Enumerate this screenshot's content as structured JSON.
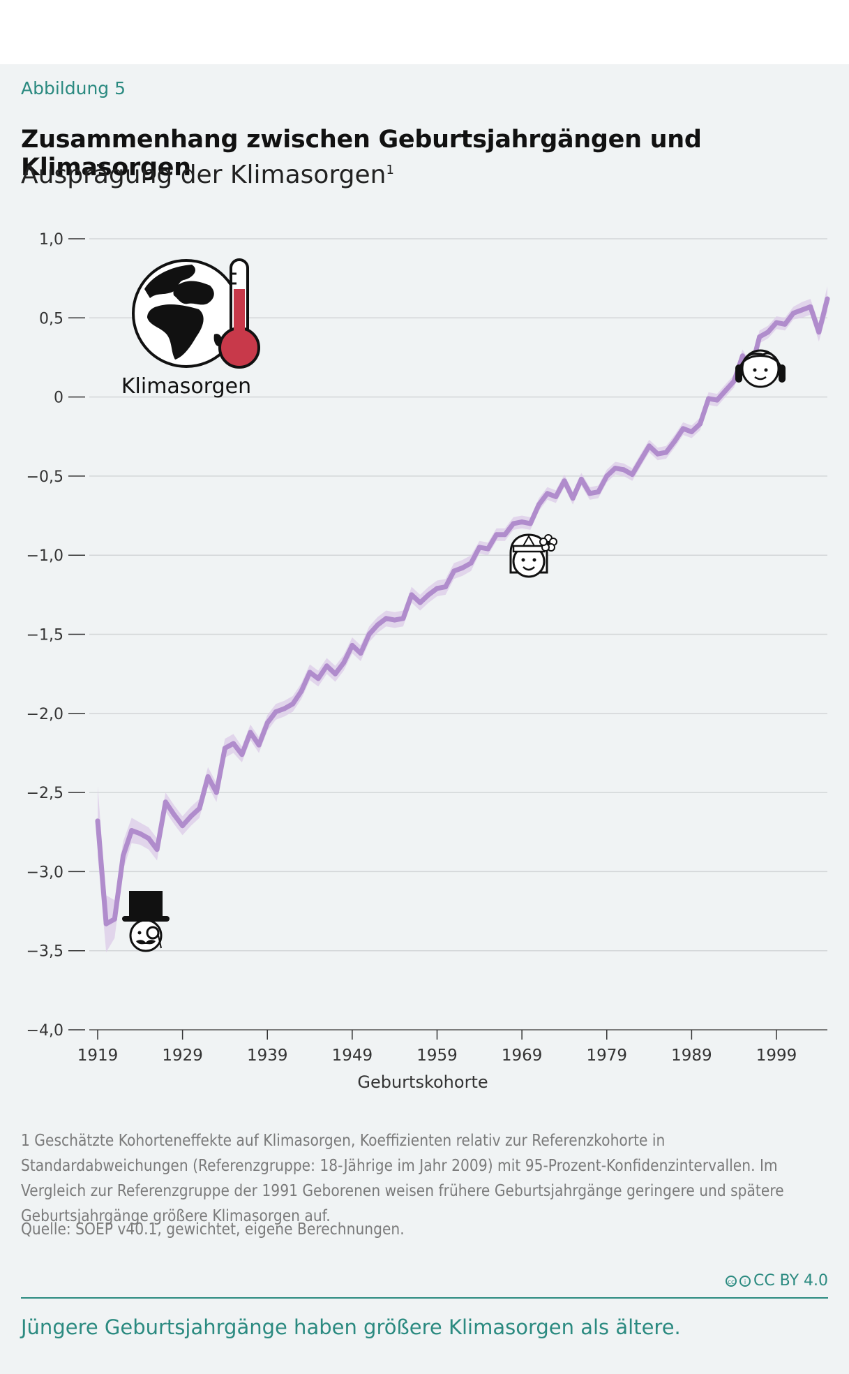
{
  "figure_label": "Abbildung 5",
  "title": "Zusammenhang zwischen Geburtsjahrgängen und Klimasorgen",
  "subtitle": "Ausprägung der Klimasorgen",
  "subtitle_note": "1",
  "icon_label": "Klimasorgen",
  "footnote": "1  Geschätzte Kohorteneffekte auf Klimasorgen, Koeffizienten relativ zur Referenzkohorte in Standardabweichungen (Referenzgruppe: 18-Jährige im Jahr 2009) mit 95-Prozent-Konfidenzintervallen. Im Vergleich zur Referenzgruppe der 1991 Geborenen weisen frühere Geburtsjahrgänge geringere und spätere Geburtsjahrgänge größere Klimasorgen auf.",
  "source": "Quelle: SOEP v40.1, gewichtet, eigene Berechnungen.",
  "license": "CC BY 4.0",
  "takeaway": "Jüngere Geburtsjahrgänge haben größere Klimasorgen als ältere.",
  "colors": {
    "accent": "#2b8a80",
    "line": "#b08ccc",
    "band": "#dccbe8",
    "thermo": "#c8394a"
  },
  "icons": [
    "globe-icon",
    "thermometer-icon",
    "top-hat-gentleman-icon",
    "hippie-face-icon",
    "headphones-face-icon"
  ],
  "chart_data": {
    "type": "line",
    "title": "Zusammenhang zwischen Geburtsjahrgängen und Klimasorgen",
    "xlabel": "Geburtskohorte",
    "ylabel": "Ausprägung der Klimasorgen",
    "xlim": [
      1919,
      2005
    ],
    "ylim": [
      -4.0,
      1.0
    ],
    "x_ticks": [
      "1919",
      "1929",
      "1939",
      "1949",
      "1959",
      "1969",
      "1979",
      "1989",
      "1999"
    ],
    "y_ticks": [
      "1,0",
      "0,5",
      "0",
      "−0,5",
      "−1,0",
      "−1,5",
      "−2,0",
      "−2,5",
      "−3,0",
      "−3,5",
      "−4,0"
    ],
    "grid": true,
    "confidence_band": "95%",
    "x": [
      1919,
      1920,
      1921,
      1922,
      1923,
      1924,
      1925,
      1926,
      1927,
      1928,
      1929,
      1930,
      1931,
      1932,
      1933,
      1934,
      1935,
      1936,
      1937,
      1938,
      1939,
      1940,
      1941,
      1942,
      1943,
      1944,
      1945,
      1946,
      1947,
      1948,
      1949,
      1950,
      1951,
      1952,
      1953,
      1954,
      1955,
      1956,
      1957,
      1958,
      1959,
      1960,
      1961,
      1962,
      1963,
      1964,
      1965,
      1966,
      1967,
      1968,
      1969,
      1970,
      1971,
      1972,
      1973,
      1974,
      1975,
      1976,
      1977,
      1978,
      1979,
      1980,
      1981,
      1982,
      1983,
      1984,
      1985,
      1986,
      1987,
      1988,
      1989,
      1990,
      1991,
      1992,
      1993,
      1994,
      1995,
      1996,
      1997,
      1998,
      1999,
      2000,
      2001,
      2002,
      2003,
      2004,
      2005
    ],
    "values": [
      -2.68,
      -3.33,
      -3.3,
      -2.9,
      -2.74,
      -2.76,
      -2.79,
      -2.86,
      -2.56,
      -2.64,
      -2.71,
      -2.65,
      -2.6,
      -2.4,
      -2.5,
      -2.22,
      -2.19,
      -2.26,
      -2.12,
      -2.2,
      -2.06,
      -1.99,
      -1.97,
      -1.94,
      -1.86,
      -1.74,
      -1.78,
      -1.7,
      -1.75,
      -1.68,
      -1.57,
      -1.62,
      -1.5,
      -1.44,
      -1.4,
      -1.41,
      -1.4,
      -1.25,
      -1.3,
      -1.25,
      -1.21,
      -1.2,
      -1.1,
      -1.08,
      -1.05,
      -0.95,
      -0.96,
      -0.87,
      -0.87,
      -0.8,
      -0.79,
      -0.8,
      -0.68,
      -0.61,
      -0.63,
      -0.53,
      -0.64,
      -0.52,
      -0.61,
      -0.6,
      -0.5,
      -0.45,
      -0.46,
      -0.49,
      -0.4,
      -0.31,
      -0.36,
      -0.35,
      -0.28,
      -0.2,
      -0.22,
      -0.17,
      -0.01,
      -0.02,
      0.04,
      0.1,
      0.26,
      0.17,
      0.38,
      0.41,
      0.47,
      0.46,
      0.53,
      0.55,
      0.57,
      0.41,
      0.62
    ],
    "ci_halfwidth": [
      0.22,
      0.18,
      0.12,
      0.09,
      0.08,
      0.07,
      0.07,
      0.07,
      0.06,
      0.06,
      0.06,
      0.06,
      0.06,
      0.06,
      0.06,
      0.06,
      0.06,
      0.05,
      0.05,
      0.05,
      0.05,
      0.05,
      0.05,
      0.05,
      0.05,
      0.05,
      0.05,
      0.05,
      0.05,
      0.05,
      0.05,
      0.05,
      0.05,
      0.05,
      0.05,
      0.05,
      0.05,
      0.05,
      0.05,
      0.05,
      0.05,
      0.05,
      0.05,
      0.05,
      0.05,
      0.04,
      0.04,
      0.04,
      0.04,
      0.04,
      0.04,
      0.04,
      0.04,
      0.04,
      0.04,
      0.04,
      0.04,
      0.04,
      0.04,
      0.04,
      0.04,
      0.04,
      0.04,
      0.04,
      0.04,
      0.04,
      0.04,
      0.04,
      0.04,
      0.04,
      0.04,
      0.04,
      0.04,
      0.04,
      0.04,
      0.04,
      0.04,
      0.04,
      0.04,
      0.04,
      0.04,
      0.04,
      0.04,
      0.05,
      0.05,
      0.06,
      0.08
    ]
  }
}
